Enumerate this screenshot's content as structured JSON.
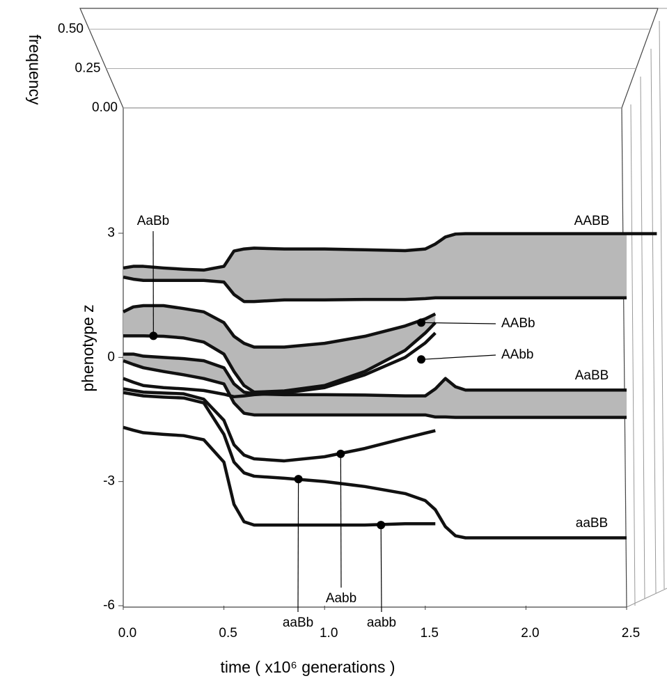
{
  "chart_data": {
    "type": "line",
    "x_label": "time ( x10⁶ generations )",
    "y_label": "phenotype z",
    "z_label": "frequency",
    "xlim": [
      0,
      2.5
    ],
    "ylim": [
      -6,
      3
    ],
    "zlim": [
      0,
      0.5
    ],
    "xticks": [
      {
        "value": 0,
        "label": "0.0"
      },
      {
        "value": 0.5,
        "label": "0.5"
      },
      {
        "value": 1,
        "label": "1.0"
      },
      {
        "value": 1.5,
        "label": "1.5"
      },
      {
        "value": 2,
        "label": "2.0"
      },
      {
        "value": 2.5,
        "label": "2.5"
      }
    ],
    "yticks": [
      -6,
      -3,
      0,
      3
    ],
    "zticks": [
      {
        "value": 0,
        "label": "0.00"
      },
      {
        "value": 0.25,
        "label": "0.25"
      },
      {
        "value": 0.5,
        "label": "0.50"
      }
    ],
    "x": [
      0,
      0.05,
      0.1,
      0.2,
      0.3,
      0.4,
      0.5,
      0.55,
      0.6,
      0.65,
      0.8,
      1.0,
      1.2,
      1.4,
      1.5,
      1.55,
      1.6,
      1.65,
      1.7,
      2.0,
      2.5,
      2.65
    ],
    "series": [
      {
        "color": "#111111",
        "values": [
          2.16,
          2.2,
          2.2,
          2.16,
          2.13,
          2.11,
          2.2,
          2.57,
          2.62,
          2.64,
          2.62,
          2.62,
          2.6,
          2.58,
          2.62,
          2.74,
          2.91,
          2.98,
          2.99,
          2.99,
          2.99,
          2.99
        ]
      },
      {
        "color": "#111111",
        "fill": "#b8b8b8",
        "values": [
          1.94,
          1.89,
          1.86,
          1.86,
          1.86,
          1.86,
          1.82,
          1.52,
          1.35,
          1.35,
          1.39,
          1.39,
          1.4,
          1.4,
          1.42,
          1.44,
          1.44,
          1.44,
          1.44,
          1.44,
          1.44,
          null
        ]
      },
      {
        "color": "#111111",
        "values": [
          1.1,
          1.22,
          1.25,
          1.25,
          1.18,
          1.1,
          0.84,
          0.51,
          0.34,
          0.25,
          0.25,
          0.34,
          0.51,
          0.76,
          0.93,
          1.05,
          null,
          null,
          null,
          null,
          null,
          null
        ]
      },
      {
        "color": "#111111",
        "fill": "#b8b8b8",
        "values": [
          0.52,
          0.52,
          0.52,
          0.51,
          0.47,
          0.37,
          0.08,
          -0.34,
          -0.68,
          -0.84,
          -0.81,
          -0.68,
          -0.34,
          0.17,
          0.59,
          0.84,
          null,
          null,
          null,
          null,
          null,
          null
        ]
      },
      {
        "color": "#111111",
        "values": [
          0.08,
          0.08,
          0.03,
          0,
          -0.03,
          -0.08,
          -0.25,
          -0.64,
          -0.84,
          -0.88,
          -0.9,
          -0.9,
          -0.91,
          -0.93,
          -0.93,
          -0.76,
          -0.51,
          -0.71,
          -0.79,
          -0.79,
          -0.79,
          null
        ]
      },
      {
        "color": "#111111",
        "fill": "#b8b8b8",
        "values": [
          -0.08,
          -0.17,
          -0.25,
          -0.34,
          -0.42,
          -0.51,
          -0.64,
          -1.1,
          -1.35,
          -1.39,
          -1.39,
          -1.39,
          -1.39,
          -1.39,
          -1.39,
          -1.44,
          -1.44,
          -1.45,
          -1.45,
          -1.45,
          -1.45,
          null
        ]
      },
      {
        "color": "#111111",
        "values": [
          -0.51,
          -0.6,
          -0.68,
          -0.73,
          -0.76,
          -0.8,
          -0.89,
          -0.95,
          -0.93,
          -0.9,
          -0.86,
          -0.73,
          -0.42,
          0.0,
          0.35,
          0.59,
          null,
          null,
          null,
          null,
          null,
          null
        ]
      },
      {
        "color": "#111111",
        "values": [
          -0.76,
          -0.8,
          -0.84,
          -0.86,
          -0.88,
          -1.01,
          -1.52,
          -2.11,
          -2.36,
          -2.45,
          -2.5,
          -2.4,
          -2.2,
          -1.95,
          -1.83,
          -1.77,
          null,
          null,
          null,
          null,
          null,
          null
        ]
      },
      {
        "color": "#111111",
        "values": [
          -0.85,
          -0.89,
          -0.93,
          -0.96,
          -0.98,
          -1.1,
          -1.86,
          -2.53,
          -2.79,
          -2.87,
          -2.92,
          -3.0,
          -3.12,
          -3.29,
          -3.46,
          -3.68,
          -4.09,
          -4.31,
          -4.36,
          -4.36,
          -4.36,
          null
        ]
      },
      {
        "color": "#111111",
        "values": [
          -1.69,
          -1.76,
          -1.82,
          -1.86,
          -1.89,
          -1.99,
          -2.53,
          -3.55,
          -3.97,
          -4.05,
          -4.05,
          -4.05,
          -4.05,
          -4.02,
          -4.02,
          -4.02,
          null,
          null,
          null,
          null,
          null,
          null
        ]
      }
    ],
    "annotations": [
      {
        "text": "AABB"
      },
      {
        "text": "AaBb",
        "x": 0.15,
        "y": 0.52
      },
      {
        "text": "AABb",
        "x": 1.48,
        "y": 0.84
      },
      {
        "text": "AAbb",
        "x": 1.48,
        "y": -0.05
      },
      {
        "text": "AaBB"
      },
      {
        "text": "aaBB"
      },
      {
        "text": "Aabb",
        "x": 1.08,
        "y": -2.33
      },
      {
        "text": "aaBb",
        "x": 0.87,
        "y": -2.94
      },
      {
        "text": "aabb",
        "x": 1.28,
        "y": -4.05
      }
    ]
  }
}
